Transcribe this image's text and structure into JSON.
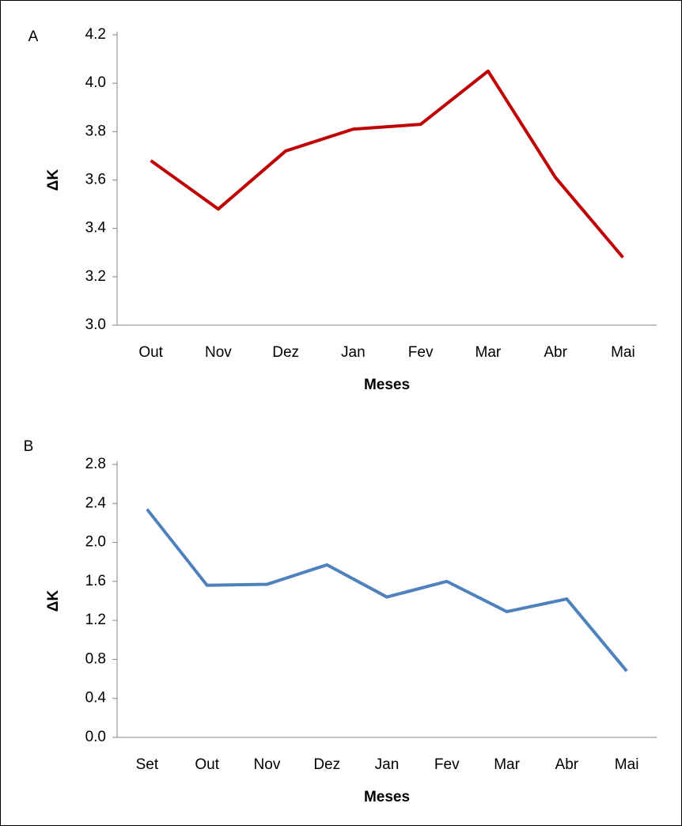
{
  "chart_data": [
    {
      "type": "line",
      "panel": "A",
      "x_label": "Meses",
      "y_label": "ΔK",
      "categories": [
        "Out",
        "Nov",
        "Dez",
        "Jan",
        "Fev",
        "Mar",
        "Abr",
        "Mai"
      ],
      "series": [
        {
          "color": "#c00000",
          "values": [
            3.68,
            3.48,
            3.72,
            3.81,
            3.83,
            4.05,
            3.61,
            3.28
          ]
        }
      ],
      "ylim": [
        3.0,
        4.2
      ],
      "yticks": [
        {
          "value": 3.0,
          "label": "3.0"
        },
        3.2,
        3.4,
        3.6,
        3.8,
        {
          "value": 4.0,
          "label": "4.0"
        },
        4.2
      ],
      "grid": false
    },
    {
      "type": "line",
      "panel": "B",
      "x_label": "Meses",
      "y_label": "ΔK",
      "categories": [
        "Set",
        "Out",
        "Nov",
        "Dez",
        "Jan",
        "Fev",
        "Mar",
        "Abr",
        "Mai"
      ],
      "series": [
        {
          "color": "#4f81bd",
          "values": [
            2.34,
            1.56,
            1.57,
            1.77,
            1.44,
            1.6,
            1.29,
            1.42,
            0.68
          ]
        }
      ],
      "ylim": [
        0.0,
        2.8
      ],
      "yticks": [
        {
          "value": 0.0,
          "label": "0.0"
        },
        0.4,
        0.8,
        1.2,
        1.6,
        {
          "value": 2.0,
          "label": "2.0"
        },
        2.4,
        2.8
      ],
      "grid": false
    }
  ]
}
